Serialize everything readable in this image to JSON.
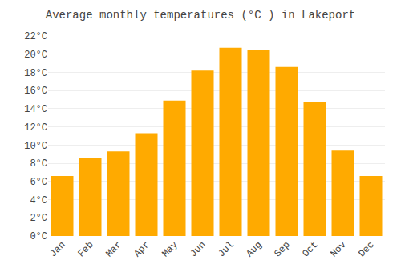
{
  "chart_data": {
    "type": "bar",
    "title": "Average monthly temperatures (°C ) in Lakeport",
    "categories": [
      "Jan",
      "Feb",
      "Mar",
      "Apr",
      "May",
      "Jun",
      "Jul",
      "Aug",
      "Sep",
      "Oct",
      "Nov",
      "Dec"
    ],
    "values": [
      6.6,
      8.6,
      9.3,
      11.3,
      14.9,
      18.2,
      20.7,
      20.5,
      18.6,
      14.7,
      9.4,
      6.6
    ],
    "color": "#FFAA00",
    "ylim": [
      0,
      22
    ],
    "yticks": [
      {
        "value": 0,
        "label": "0°C"
      },
      {
        "value": 2,
        "label": "2°C"
      },
      {
        "value": 4,
        "label": "4°C"
      },
      {
        "value": 6,
        "label": "6°C"
      },
      {
        "value": 8,
        "label": "8°C"
      },
      {
        "value": 10,
        "label": "10°C"
      },
      {
        "value": 12,
        "label": "12°C"
      },
      {
        "value": 14,
        "label": "14°C"
      },
      {
        "value": 16,
        "label": "16°C"
      },
      {
        "value": 18,
        "label": "18°C"
      },
      {
        "value": 20,
        "label": "20°C"
      },
      {
        "value": 22,
        "label": "22°C"
      }
    ],
    "grid": true
  }
}
